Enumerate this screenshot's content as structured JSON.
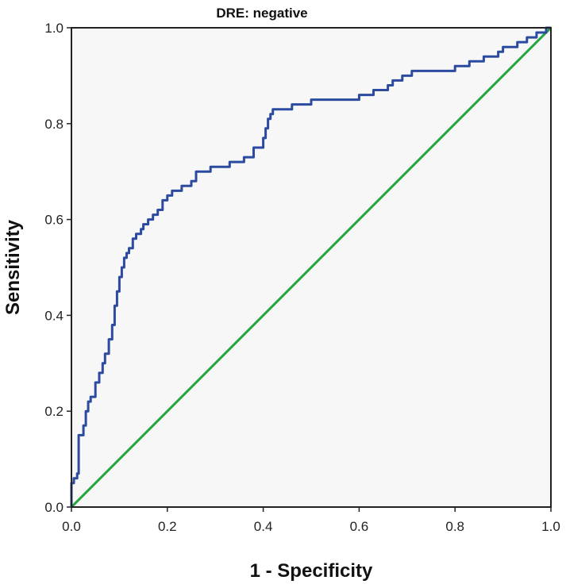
{
  "chart_data": {
    "type": "line",
    "title": "DRE: negative",
    "xlabel": "1 - Specificity",
    "ylabel": "Sensitivity",
    "xlim": [
      0,
      1
    ],
    "ylim": [
      0,
      1
    ],
    "xticks": [
      "0.0",
      "0.2",
      "0.4",
      "0.6",
      "0.8",
      "1.0"
    ],
    "yticks": [
      "0.0",
      "0.2",
      "0.4",
      "0.6",
      "0.8",
      "1.0"
    ],
    "grid": false,
    "legend": "none",
    "colors": {
      "plot_background": "#f7f7f7",
      "roc_curve": "#2b4aa0",
      "reference_line": "#22a63c",
      "axis": "#222222"
    },
    "series": [
      {
        "x": [
          0,
          0,
          0.005,
          0.005,
          0.012,
          0.012,
          0.015,
          0.015,
          0.025,
          0.025,
          0.03,
          0.03,
          0.035,
          0.035,
          0.04,
          0.04,
          0.05,
          0.05,
          0.058,
          0.058,
          0.065,
          0.065,
          0.07,
          0.07,
          0.078,
          0.078,
          0.085,
          0.085,
          0.09,
          0.09,
          0.095,
          0.095,
          0.1,
          0.1,
          0.105,
          0.105,
          0.11,
          0.11,
          0.115,
          0.115,
          0.12,
          0.12,
          0.128,
          0.128,
          0.135,
          0.135,
          0.145,
          0.145,
          0.15,
          0.15,
          0.16,
          0.16,
          0.17,
          0.17,
          0.18,
          0.18,
          0.19,
          0.19,
          0.2,
          0.2,
          0.21,
          0.21,
          0.23,
          0.23,
          0.25,
          0.25,
          0.26,
          0.26,
          0.29,
          0.29,
          0.33,
          0.33,
          0.36,
          0.36,
          0.38,
          0.38,
          0.4,
          0.4,
          0.405,
          0.405,
          0.41,
          0.41,
          0.415,
          0.415,
          0.42,
          0.42,
          0.43,
          0.43,
          0.46,
          0.46,
          0.5,
          0.5,
          0.55,
          0.55,
          0.6,
          0.6,
          0.63,
          0.63,
          0.66,
          0.66,
          0.67,
          0.67,
          0.69,
          0.69,
          0.71,
          0.71,
          0.8,
          0.8,
          0.83,
          0.83,
          0.86,
          0.86,
          0.89,
          0.89,
          0.9,
          0.9,
          0.93,
          0.93,
          0.95,
          0.95,
          0.97,
          0.97,
          0.99,
          0.99,
          1.0
        ],
        "y": [
          0,
          0.05,
          0.05,
          0.06,
          0.06,
          0.07,
          0.07,
          0.15,
          0.15,
          0.17,
          0.17,
          0.2,
          0.2,
          0.22,
          0.22,
          0.23,
          0.23,
          0.26,
          0.26,
          0.28,
          0.28,
          0.3,
          0.3,
          0.32,
          0.32,
          0.35,
          0.35,
          0.38,
          0.38,
          0.42,
          0.42,
          0.45,
          0.45,
          0.48,
          0.48,
          0.5,
          0.5,
          0.52,
          0.52,
          0.53,
          0.53,
          0.54,
          0.54,
          0.56,
          0.56,
          0.57,
          0.57,
          0.58,
          0.58,
          0.59,
          0.59,
          0.6,
          0.6,
          0.61,
          0.61,
          0.62,
          0.62,
          0.64,
          0.64,
          0.65,
          0.65,
          0.66,
          0.66,
          0.67,
          0.67,
          0.68,
          0.68,
          0.7,
          0.7,
          0.71,
          0.71,
          0.72,
          0.72,
          0.73,
          0.73,
          0.75,
          0.75,
          0.77,
          0.77,
          0.79,
          0.79,
          0.81,
          0.81,
          0.82,
          0.82,
          0.83,
          0.83,
          0.83,
          0.83,
          0.84,
          0.84,
          0.85,
          0.85,
          0.85,
          0.85,
          0.86,
          0.86,
          0.87,
          0.87,
          0.88,
          0.88,
          0.89,
          0.89,
          0.9,
          0.9,
          0.91,
          0.91,
          0.92,
          0.92,
          0.93,
          0.93,
          0.94,
          0.94,
          0.95,
          0.95,
          0.96,
          0.96,
          0.97,
          0.97,
          0.98,
          0.98,
          0.99,
          0.99,
          1.0,
          1.0
        ]
      },
      {
        "x": [
          0,
          1
        ],
        "y": [
          0,
          1
        ]
      }
    ]
  }
}
